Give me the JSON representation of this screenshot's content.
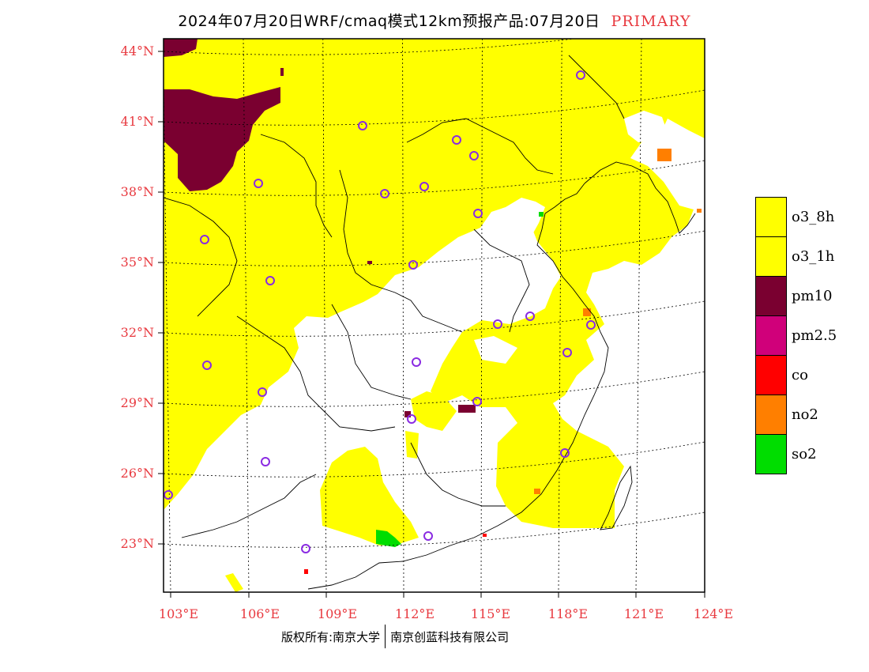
{
  "title": {
    "main": "2024年07月20日WRF/cmaq模式12km预报产品:07月20日",
    "tag": "PRIMARY"
  },
  "map": {
    "lat_labels": [
      "44°N",
      "41°N",
      "38°N",
      "35°N",
      "32°N",
      "29°N",
      "26°N",
      "23°N"
    ],
    "lon_labels": [
      "103°E",
      "106°E",
      "109°E",
      "112°E",
      "115°E",
      "118°E",
      "121°E",
      "124°E"
    ],
    "colors": {
      "o3_8h": "#ffff00",
      "o3_1h": "#ffff00",
      "pm10": "#7a0030",
      "pm2_5": "#d0007a",
      "co": "#ff0000",
      "no2": "#ff7f00",
      "so2": "#00dd00",
      "station_marker": "#8a2be2"
    }
  },
  "legend": {
    "items": [
      {
        "label": "o3_8h",
        "color": "#ffff00"
      },
      {
        "label": "o3_1h",
        "color": "#ffff00"
      },
      {
        "label": "pm10",
        "color": "#7a0030"
      },
      {
        "label": "pm2.5",
        "color": "#d0007a"
      },
      {
        "label": "co",
        "color": "#ff0000"
      },
      {
        "label": "no2",
        "color": "#ff7f00"
      },
      {
        "label": "so2",
        "color": "#00dd00"
      }
    ]
  },
  "footer": {
    "left": "版权所有:南京大学",
    "right": "南京创蓝科技有限公司"
  }
}
